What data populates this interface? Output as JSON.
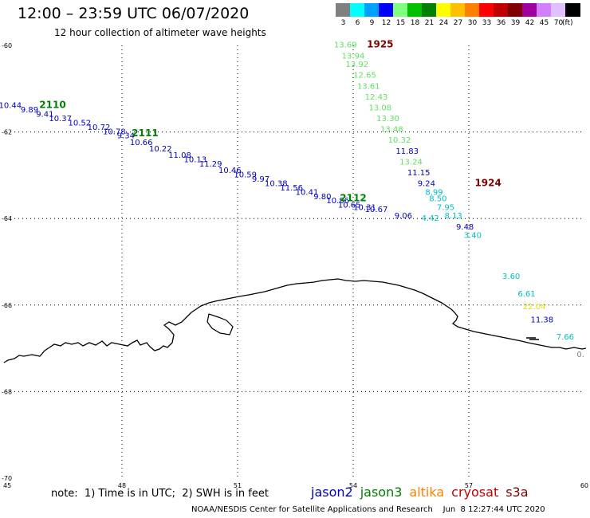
{
  "title": "12:00 – 23:59 UTC 06/07/2020",
  "subtitle": "12 hour collection of altimeter wave heights",
  "legend": {
    "unit": "(ft)",
    "bins": [
      {
        "label": "3",
        "color": "#808080"
      },
      {
        "label": "6",
        "color": "#00ffff"
      },
      {
        "label": "9",
        "color": "#00a0ff"
      },
      {
        "label": "12",
        "color": "#0000ff"
      },
      {
        "label": "15",
        "color": "#80ff80"
      },
      {
        "label": "18",
        "color": "#00c000"
      },
      {
        "label": "21",
        "color": "#008000"
      },
      {
        "label": "24",
        "color": "#ffff00"
      },
      {
        "label": "27",
        "color": "#ffc000"
      },
      {
        "label": "30",
        "color": "#ff8000"
      },
      {
        "label": "33",
        "color": "#ff0000"
      },
      {
        "label": "36",
        "color": "#c00000"
      },
      {
        "label": "39",
        "color": "#800000"
      },
      {
        "label": "42",
        "color": "#a000a0"
      },
      {
        "label": "45",
        "color": "#d080ff"
      },
      {
        "label": "70",
        "color": "#e0c0ff"
      },
      {
        "label": "",
        "color": "#000000"
      }
    ]
  },
  "axes": {
    "lon_ticks": [
      "45",
      "48",
      "51",
      "54",
      "57",
      "60"
    ],
    "lat_ticks": [
      "-60",
      "-62",
      "-64",
      "-66",
      "-68",
      "-70"
    ]
  },
  "colors": {
    "jason2": "#0000c0",
    "jason3": "#008000",
    "altika": "#ff8000",
    "cryosat": "#c00000",
    "s3a": "#800000",
    "coast": "#000000"
  },
  "tracks": [
    {
      "name": "2110",
      "color": "#008000",
      "lon": 46.2,
      "lat": -61.45
    },
    {
      "name": "2111",
      "color": "#008000",
      "lon": 48.6,
      "lat": -62.1
    },
    {
      "name": "2112",
      "color": "#008000",
      "lon": 54.0,
      "lat": -63.6
    },
    {
      "name": "1925",
      "color": "#800000",
      "lon": 54.7,
      "lat": -60.05
    },
    {
      "name": "1924",
      "color": "#800000",
      "lon": 57.5,
      "lat": -63.25
    }
  ],
  "points": [
    {
      "v": "10.44",
      "lon": 45.1,
      "lat": -61.45,
      "c": "#0000c0"
    },
    {
      "v": "9.89",
      "lon": 45.6,
      "lat": -61.55,
      "c": "#0000c0"
    },
    {
      "v": "9.41",
      "lon": 46.0,
      "lat": -61.65,
      "c": "#0000c0"
    },
    {
      "v": "10.37",
      "lon": 46.4,
      "lat": -61.75,
      "c": "#0000c0"
    },
    {
      "v": "10.52",
      "lon": 46.9,
      "lat": -61.85,
      "c": "#0000c0"
    },
    {
      "v": "10.72",
      "lon": 47.4,
      "lat": -61.95,
      "c": "#0000c0"
    },
    {
      "v": "10.78",
      "lon": 47.8,
      "lat": -62.05,
      "c": "#0000c0"
    },
    {
      "v": "9.34",
      "lon": 48.1,
      "lat": -62.15,
      "c": "#0000c0"
    },
    {
      "v": "10.66",
      "lon": 48.5,
      "lat": -62.3,
      "c": "#0000c0"
    },
    {
      "v": "10.22",
      "lon": 49.0,
      "lat": -62.45,
      "c": "#0000c0"
    },
    {
      "v": "11.08",
      "lon": 49.5,
      "lat": -62.6,
      "c": "#0000c0"
    },
    {
      "v": "10.13",
      "lon": 49.9,
      "lat": -62.7,
      "c": "#0000c0"
    },
    {
      "v": "11.29",
      "lon": 50.3,
      "lat": -62.8,
      "c": "#0000c0"
    },
    {
      "v": "10.46",
      "lon": 50.8,
      "lat": -62.95,
      "c": "#0000c0"
    },
    {
      "v": "10.59",
      "lon": 51.2,
      "lat": -63.05,
      "c": "#0000c0"
    },
    {
      "v": "9.97",
      "lon": 51.6,
      "lat": -63.15,
      "c": "#0000c0"
    },
    {
      "v": "10.38",
      "lon": 52.0,
      "lat": -63.25,
      "c": "#0000c0"
    },
    {
      "v": "11.56",
      "lon": 52.4,
      "lat": -63.35,
      "c": "#0000c0"
    },
    {
      "v": "10.41",
      "lon": 52.8,
      "lat": -63.45,
      "c": "#0000c0"
    },
    {
      "v": "9.80",
      "lon": 53.2,
      "lat": -63.55,
      "c": "#0000c0"
    },
    {
      "v": "10.86",
      "lon": 53.6,
      "lat": -63.65,
      "c": "#0000c0"
    },
    {
      "v": "10.65",
      "lon": 53.9,
      "lat": -63.75,
      "c": "#0000c0"
    },
    {
      "v": "10.31",
      "lon": 54.3,
      "lat": -63.8,
      "c": "#0000c0"
    },
    {
      "v": "10.67",
      "lon": 54.6,
      "lat": -63.85,
      "c": "#0000c0"
    },
    {
      "v": "9.06",
      "lon": 55.3,
      "lat": -64.0,
      "c": "#0000c0"
    },
    {
      "v": "4.42",
      "lon": 56.0,
      "lat": -64.05,
      "c": "#00c0c0"
    },
    {
      "v": "13.69",
      "lon": 53.8,
      "lat": -60.05,
      "c": "#60e060"
    },
    {
      "v": "13.94",
      "lon": 54.0,
      "lat": -60.3,
      "c": "#60e060"
    },
    {
      "v": "13.92",
      "lon": 54.1,
      "lat": -60.5,
      "c": "#60e060"
    },
    {
      "v": "12.65",
      "lon": 54.3,
      "lat": -60.75,
      "c": "#60e060"
    },
    {
      "v": "13.61",
      "lon": 54.4,
      "lat": -61.0,
      "c": "#60e060"
    },
    {
      "v": "12.43",
      "lon": 54.6,
      "lat": -61.25,
      "c": "#60e060"
    },
    {
      "v": "13.08",
      "lon": 54.7,
      "lat": -61.5,
      "c": "#60e060"
    },
    {
      "v": "13.30",
      "lon": 54.9,
      "lat": -61.75,
      "c": "#60e060"
    },
    {
      "v": "13.48",
      "lon": 55.0,
      "lat": -62.0,
      "c": "#60e060"
    },
    {
      "v": "10.32",
      "lon": 55.2,
      "lat": -62.25,
      "c": "#60e060"
    },
    {
      "v": "11.83",
      "lon": 55.4,
      "lat": -62.5,
      "c": "#0000c0"
    },
    {
      "v": "13.24",
      "lon": 55.5,
      "lat": -62.75,
      "c": "#60e060"
    },
    {
      "v": "11.15",
      "lon": 55.7,
      "lat": -63.0,
      "c": "#0000c0"
    },
    {
      "v": "9.24",
      "lon": 55.9,
      "lat": -63.25,
      "c": "#0000c0"
    },
    {
      "v": "8.99",
      "lon": 56.1,
      "lat": -63.45,
      "c": "#00c0c0"
    },
    {
      "v": "8.50",
      "lon": 56.2,
      "lat": -63.6,
      "c": "#00c0c0"
    },
    {
      "v": "7.95",
      "lon": 56.4,
      "lat": -63.8,
      "c": "#00c0c0"
    },
    {
      "v": "8.13",
      "lon": 56.6,
      "lat": -64.0,
      "c": "#00c0c0"
    },
    {
      "v": "9.48",
      "lon": 56.9,
      "lat": -64.25,
      "c": "#0000c0"
    },
    {
      "v": "3.40",
      "lon": 57.1,
      "lat": -64.45,
      "c": "#00c0c0"
    },
    {
      "v": "3.60",
      "lon": 58.1,
      "lat": -65.4,
      "c": "#00c0c0"
    },
    {
      "v": "6.61",
      "lon": 58.5,
      "lat": -65.8,
      "c": "#00c0c0"
    },
    {
      "v": "22.04",
      "lon": 58.7,
      "lat": -66.1,
      "c": "#e0e000"
    },
    {
      "v": "11.38",
      "lon": 58.9,
      "lat": -66.4,
      "c": "#0000c0"
    },
    {
      "v": "7.66",
      "lon": 59.5,
      "lat": -66.8,
      "c": "#00c0c0"
    },
    {
      "v": "0.",
      "lon": 59.9,
      "lat": -67.2,
      "c": "#808080"
    }
  ],
  "note": "note:  1) Time is in UTC;  2) SWH is in feet",
  "satellites": [
    {
      "name": "jason2",
      "color": "#0000c0"
    },
    {
      "name": "jason3",
      "color": "#008000"
    },
    {
      "name": "altika",
      "color": "#ff8000"
    },
    {
      "name": "cryosat",
      "color": "#c00000"
    },
    {
      "name": "s3a",
      "color": "#800000"
    }
  ],
  "footer": "NOAA/NESDIS Center for Satellite Applications and Research    Jun  8 12:27:44 UTC 2020"
}
